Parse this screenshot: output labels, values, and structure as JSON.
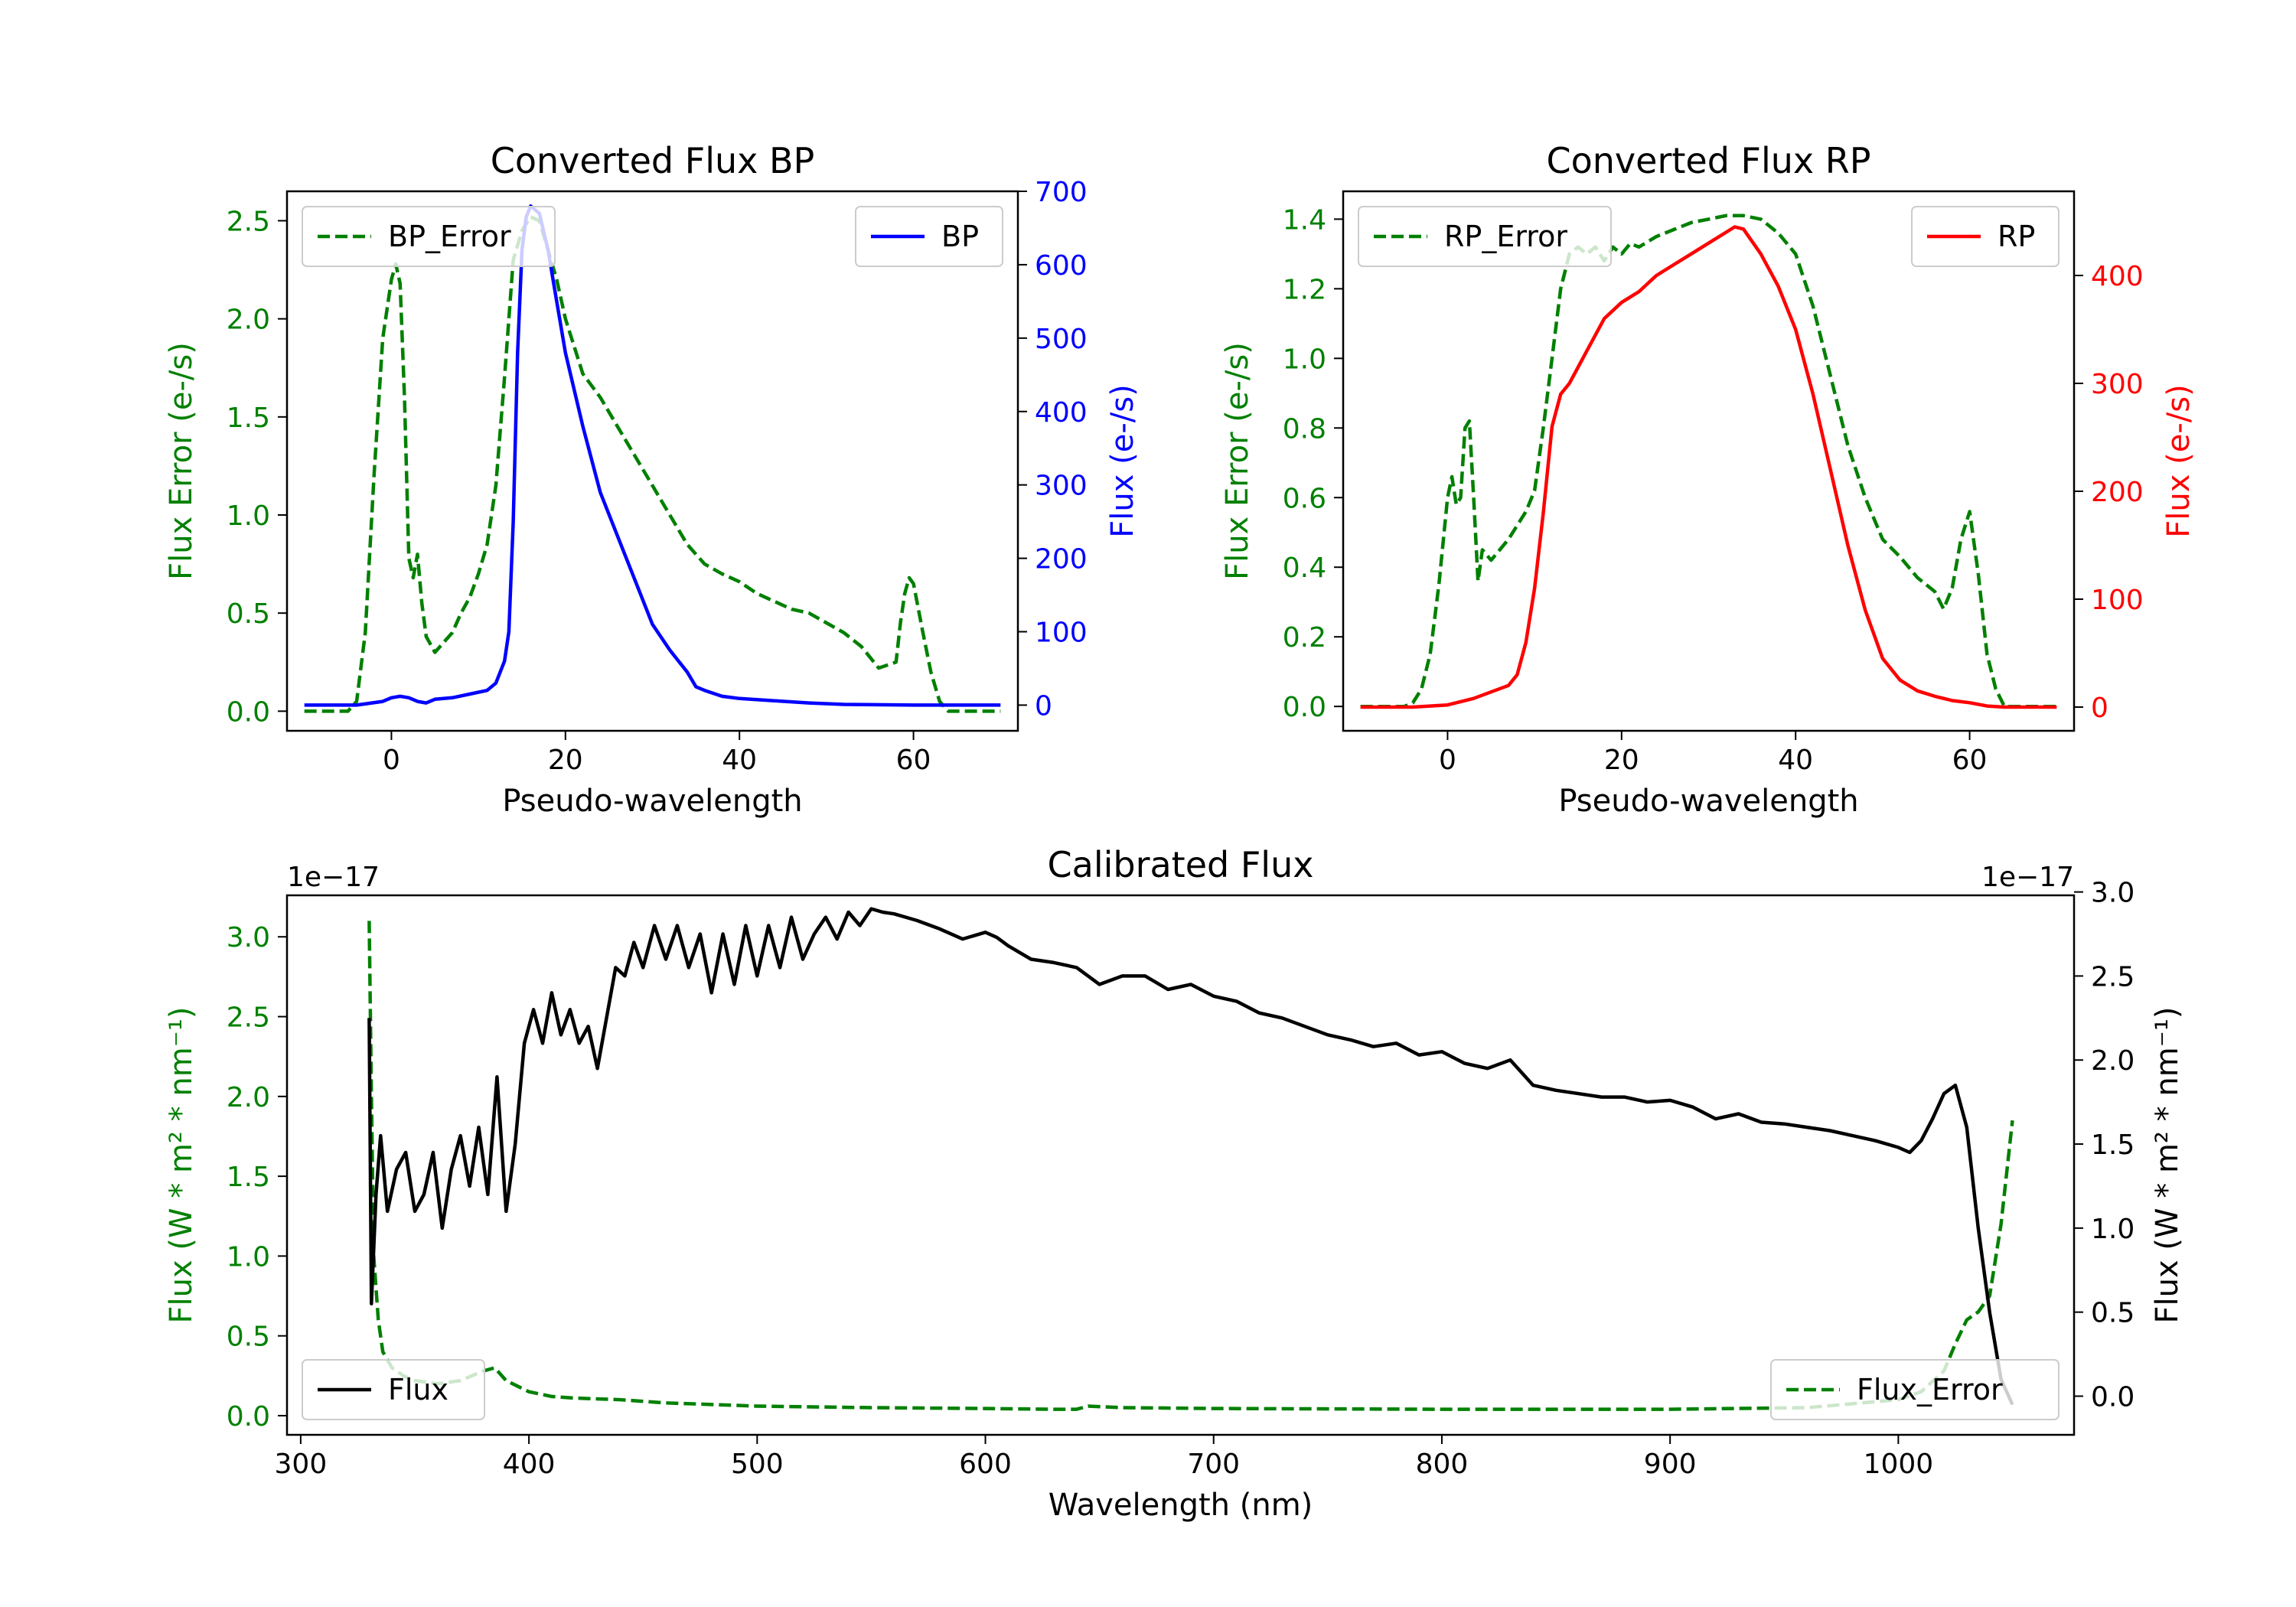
{
  "chart_data": [
    {
      "id": "bp",
      "type": "line",
      "title": "Converted Flux BP",
      "xlabel": "Pseudo-wavelength",
      "xlim": [
        -12,
        72
      ],
      "xticks": [
        0,
        20,
        40,
        60
      ],
      "left_axis": {
        "label": "Flux Error (e-/s)",
        "color": "#008000",
        "ylim": [
          -0.1,
          2.65
        ],
        "ticks": [
          0.0,
          0.5,
          1.0,
          1.5,
          2.0,
          2.5
        ],
        "tick_labels": [
          "0.0",
          "0.5",
          "1.0",
          "1.5",
          "2.0",
          "2.5"
        ]
      },
      "right_axis": {
        "label": "Flux (e-/s)",
        "color": "#0000ff",
        "ylim": [
          -35,
          700
        ],
        "ticks": [
          0,
          100,
          200,
          300,
          400,
          500,
          600,
          700
        ],
        "tick_labels": [
          "0",
          "100",
          "200",
          "300",
          "400",
          "500",
          "600",
          "700"
        ]
      },
      "series": [
        {
          "name": "BP_Error",
          "axis": "left",
          "color": "#008000",
          "dash": true,
          "x": [
            -10,
            -5,
            -4,
            -3,
            -2,
            -1,
            0,
            0.5,
            1,
            1.5,
            2,
            2.5,
            3,
            3.5,
            4,
            5,
            6,
            7,
            8,
            9,
            10,
            11,
            12,
            13,
            14,
            15,
            16,
            17,
            18,
            19,
            20,
            22,
            24,
            26,
            28,
            30,
            32,
            34,
            36,
            38,
            40,
            42,
            44,
            46,
            48,
            50,
            52,
            54,
            56,
            58,
            58.5,
            59,
            59.5,
            60,
            61,
            62,
            63,
            64,
            66,
            68,
            70
          ],
          "y": [
            0.0,
            0.0,
            0.05,
            0.4,
            1.2,
            1.9,
            2.2,
            2.28,
            2.18,
            1.6,
            0.78,
            0.68,
            0.8,
            0.55,
            0.38,
            0.3,
            0.35,
            0.4,
            0.5,
            0.58,
            0.7,
            0.85,
            1.15,
            1.7,
            2.3,
            2.45,
            2.52,
            2.5,
            2.35,
            2.2,
            2.0,
            1.72,
            1.6,
            1.45,
            1.3,
            1.15,
            1.0,
            0.85,
            0.75,
            0.7,
            0.66,
            0.6,
            0.56,
            0.52,
            0.5,
            0.45,
            0.4,
            0.33,
            0.22,
            0.25,
            0.45,
            0.6,
            0.68,
            0.65,
            0.42,
            0.2,
            0.05,
            0.0,
            0.0,
            0.0,
            0.0
          ]
        },
        {
          "name": "BP",
          "axis": "right",
          "color": "#0000ff",
          "dash": false,
          "x": [
            -10,
            -4,
            -1,
            0,
            1,
            2,
            3,
            4,
            5,
            7,
            9,
            11,
            12,
            13,
            13.5,
            14,
            14.5,
            15,
            15.5,
            16,
            17,
            18,
            19,
            20,
            22,
            24,
            26,
            28,
            30,
            32,
            34,
            35,
            36,
            38,
            40,
            44,
            48,
            52,
            60,
            66,
            70
          ],
          "y": [
            0,
            0,
            5,
            10,
            12,
            10,
            5,
            3,
            8,
            10,
            15,
            20,
            30,
            60,
            100,
            250,
            480,
            620,
            665,
            680,
            670,
            620,
            550,
            480,
            380,
            290,
            230,
            170,
            110,
            75,
            45,
            25,
            20,
            12,
            9,
            6,
            3,
            1,
            0,
            0,
            0
          ]
        }
      ],
      "legend": [
        {
          "label": "BP_Error",
          "position": "upper left"
        },
        {
          "label": "BP",
          "position": "upper right"
        }
      ]
    },
    {
      "id": "rp",
      "type": "line",
      "title": "Converted Flux RP",
      "xlabel": "Pseudo-wavelength",
      "xlim": [
        -12,
        72
      ],
      "xticks": [
        0,
        20,
        40,
        60
      ],
      "left_axis": {
        "label": "Flux Error (e-/s)",
        "color": "#008000",
        "ylim": [
          -0.07,
          1.48
        ],
        "ticks": [
          0.0,
          0.2,
          0.4,
          0.6,
          0.8,
          1.0,
          1.2,
          1.4
        ],
        "tick_labels": [
          "0.0",
          "0.2",
          "0.4",
          "0.6",
          "0.8",
          "1.0",
          "1.2",
          "1.4"
        ]
      },
      "right_axis": {
        "label": "Flux (e-/s)",
        "color": "#ff0000",
        "ylim": [
          -22,
          478
        ],
        "ticks": [
          0,
          100,
          200,
          300,
          400
        ],
        "tick_labels": [
          "0",
          "100",
          "200",
          "300",
          "400"
        ]
      },
      "series": [
        {
          "name": "RP_Error",
          "axis": "left",
          "color": "#008000",
          "dash": true,
          "x": [
            -10,
            -5,
            -4,
            -3,
            -2,
            -1,
            0,
            0.5,
            1,
            1.5,
            2,
            2.5,
            3,
            3.5,
            4,
            5,
            6,
            7,
            8,
            9,
            10,
            11,
            12,
            13,
            14,
            15,
            16,
            17,
            18,
            19,
            20,
            21,
            22,
            24,
            26,
            28,
            30,
            32,
            34,
            36,
            38,
            40,
            42,
            44,
            46,
            48,
            50,
            52,
            54,
            56,
            57,
            58,
            59,
            60,
            61,
            62,
            63,
            64,
            66,
            70
          ],
          "y": [
            0.0,
            0.0,
            0.01,
            0.05,
            0.15,
            0.35,
            0.6,
            0.66,
            0.58,
            0.6,
            0.8,
            0.82,
            0.6,
            0.36,
            0.45,
            0.42,
            0.45,
            0.48,
            0.52,
            0.56,
            0.62,
            0.8,
            1.0,
            1.2,
            1.3,
            1.32,
            1.3,
            1.32,
            1.28,
            1.32,
            1.3,
            1.33,
            1.32,
            1.35,
            1.37,
            1.39,
            1.4,
            1.41,
            1.41,
            1.4,
            1.36,
            1.3,
            1.15,
            0.95,
            0.75,
            0.6,
            0.48,
            0.43,
            0.37,
            0.33,
            0.28,
            0.34,
            0.48,
            0.56,
            0.38,
            0.15,
            0.05,
            0.0,
            0.0,
            0.0
          ]
        },
        {
          "name": "RP",
          "axis": "right",
          "color": "#ff0000",
          "dash": false,
          "x": [
            -10,
            -4,
            0,
            3,
            5,
            7,
            8,
            9,
            10,
            11,
            12,
            13,
            14,
            16,
            18,
            20,
            22,
            24,
            26,
            28,
            30,
            32,
            33,
            34,
            36,
            38,
            40,
            42,
            44,
            46,
            48,
            50,
            52,
            54,
            56,
            58,
            60,
            62,
            64,
            66,
            70
          ],
          "y": [
            0,
            0,
            2,
            8,
            14,
            20,
            30,
            60,
            110,
            180,
            260,
            290,
            300,
            330,
            360,
            375,
            385,
            400,
            410,
            420,
            430,
            440,
            445,
            443,
            420,
            390,
            350,
            290,
            220,
            150,
            90,
            45,
            25,
            15,
            10,
            6,
            4,
            1,
            0,
            0,
            0
          ]
        }
      ],
      "legend": [
        {
          "label": "RP_Error",
          "position": "upper left"
        },
        {
          "label": "RP",
          "position": "upper right"
        }
      ]
    },
    {
      "id": "cal",
      "type": "line",
      "title": "Calibrated Flux",
      "xlabel": "Wavelength (nm)",
      "xlim": [
        294,
        1077
      ],
      "xticks": [
        300,
        400,
        500,
        600,
        700,
        800,
        900,
        1000
      ],
      "left_axis": {
        "label": "Flux (W * m² * nm⁻¹)",
        "color": "#008000",
        "offset": "1e−17",
        "ylim": [
          -0.12,
          3.26
        ],
        "ticks": [
          0.0,
          0.5,
          1.0,
          1.5,
          2.0,
          2.5,
          3.0
        ],
        "tick_labels": [
          "0.0",
          "0.5",
          "1.0",
          "1.5",
          "2.0",
          "2.5",
          "3.0"
        ]
      },
      "right_axis": {
        "label": "Flux (W * m² * nm⁻¹)",
        "color": "#000000",
        "offset": "1e−17",
        "ylim": [
          -0.23,
          2.98
        ],
        "ticks": [
          0.0,
          0.5,
          1.0,
          1.5,
          2.0,
          2.5,
          3.0
        ],
        "tick_labels": [
          "0.0",
          "0.5",
          "1.0",
          "1.5",
          "2.0",
          "2.5",
          "3.0"
        ]
      },
      "series": [
        {
          "name": "Flux_Error",
          "axis": "left",
          "color": "#008000",
          "dash": true,
          "x": [
            330,
            331,
            332,
            334,
            336,
            340,
            345,
            350,
            360,
            370,
            375,
            380,
            385,
            390,
            400,
            410,
            420,
            440,
            460,
            500,
            550,
            600,
            630,
            640,
            645,
            660,
            700,
            800,
            900,
            960,
            1000,
            1010,
            1020,
            1025,
            1030,
            1035,
            1040,
            1045,
            1050
          ],
          "y": [
            3.1,
            2.0,
            1.0,
            0.6,
            0.4,
            0.3,
            0.25,
            0.22,
            0.2,
            0.22,
            0.25,
            0.28,
            0.3,
            0.22,
            0.15,
            0.12,
            0.11,
            0.1,
            0.08,
            0.06,
            0.05,
            0.045,
            0.04,
            0.04,
            0.06,
            0.05,
            0.045,
            0.04,
            0.04,
            0.05,
            0.1,
            0.15,
            0.28,
            0.45,
            0.6,
            0.65,
            0.75,
            1.2,
            1.85
          ]
        },
        {
          "name": "Flux",
          "axis": "right",
          "color": "#000000",
          "dash": false,
          "x": [
            330,
            331,
            333,
            335,
            338,
            342,
            346,
            350,
            354,
            358,
            362,
            366,
            370,
            374,
            378,
            382,
            386,
            390,
            394,
            398,
            402,
            406,
            410,
            414,
            418,
            422,
            426,
            430,
            434,
            438,
            442,
            446,
            450,
            455,
            460,
            465,
            470,
            475,
            480,
            485,
            490,
            495,
            500,
            505,
            510,
            515,
            520,
            525,
            530,
            535,
            540,
            545,
            550,
            555,
            560,
            570,
            580,
            590,
            600,
            605,
            610,
            620,
            630,
            640,
            650,
            660,
            670,
            680,
            690,
            700,
            710,
            720,
            730,
            740,
            750,
            760,
            770,
            780,
            790,
            800,
            810,
            820,
            830,
            840,
            850,
            860,
            870,
            880,
            890,
            900,
            910,
            920,
            930,
            940,
            950,
            960,
            970,
            980,
            990,
            1000,
            1005,
            1010,
            1015,
            1020,
            1025,
            1030,
            1035,
            1040,
            1045,
            1050
          ],
          "y": [
            2.25,
            0.55,
            1.2,
            1.55,
            1.1,
            1.35,
            1.45,
            1.1,
            1.2,
            1.45,
            1.0,
            1.35,
            1.55,
            1.25,
            1.6,
            1.2,
            1.9,
            1.1,
            1.5,
            2.1,
            2.3,
            2.1,
            2.4,
            2.15,
            2.3,
            2.1,
            2.2,
            1.95,
            2.25,
            2.55,
            2.5,
            2.7,
            2.55,
            2.8,
            2.6,
            2.8,
            2.55,
            2.75,
            2.4,
            2.75,
            2.45,
            2.8,
            2.5,
            2.8,
            2.55,
            2.85,
            2.6,
            2.75,
            2.85,
            2.72,
            2.88,
            2.8,
            2.9,
            2.88,
            2.87,
            2.83,
            2.78,
            2.72,
            2.76,
            2.73,
            2.68,
            2.6,
            2.58,
            2.55,
            2.45,
            2.5,
            2.5,
            2.42,
            2.45,
            2.38,
            2.35,
            2.28,
            2.25,
            2.2,
            2.15,
            2.12,
            2.08,
            2.1,
            2.03,
            2.05,
            1.98,
            1.95,
            2.0,
            1.85,
            1.82,
            1.8,
            1.78,
            1.78,
            1.75,
            1.76,
            1.72,
            1.65,
            1.68,
            1.63,
            1.62,
            1.6,
            1.58,
            1.55,
            1.52,
            1.48,
            1.45,
            1.52,
            1.65,
            1.8,
            1.85,
            1.6,
            1.0,
            0.5,
            0.1,
            -0.05
          ]
        }
      ],
      "legend": [
        {
          "label": "Flux",
          "position": "lower left"
        },
        {
          "label": "Flux_Error",
          "position": "lower right"
        }
      ]
    }
  ]
}
